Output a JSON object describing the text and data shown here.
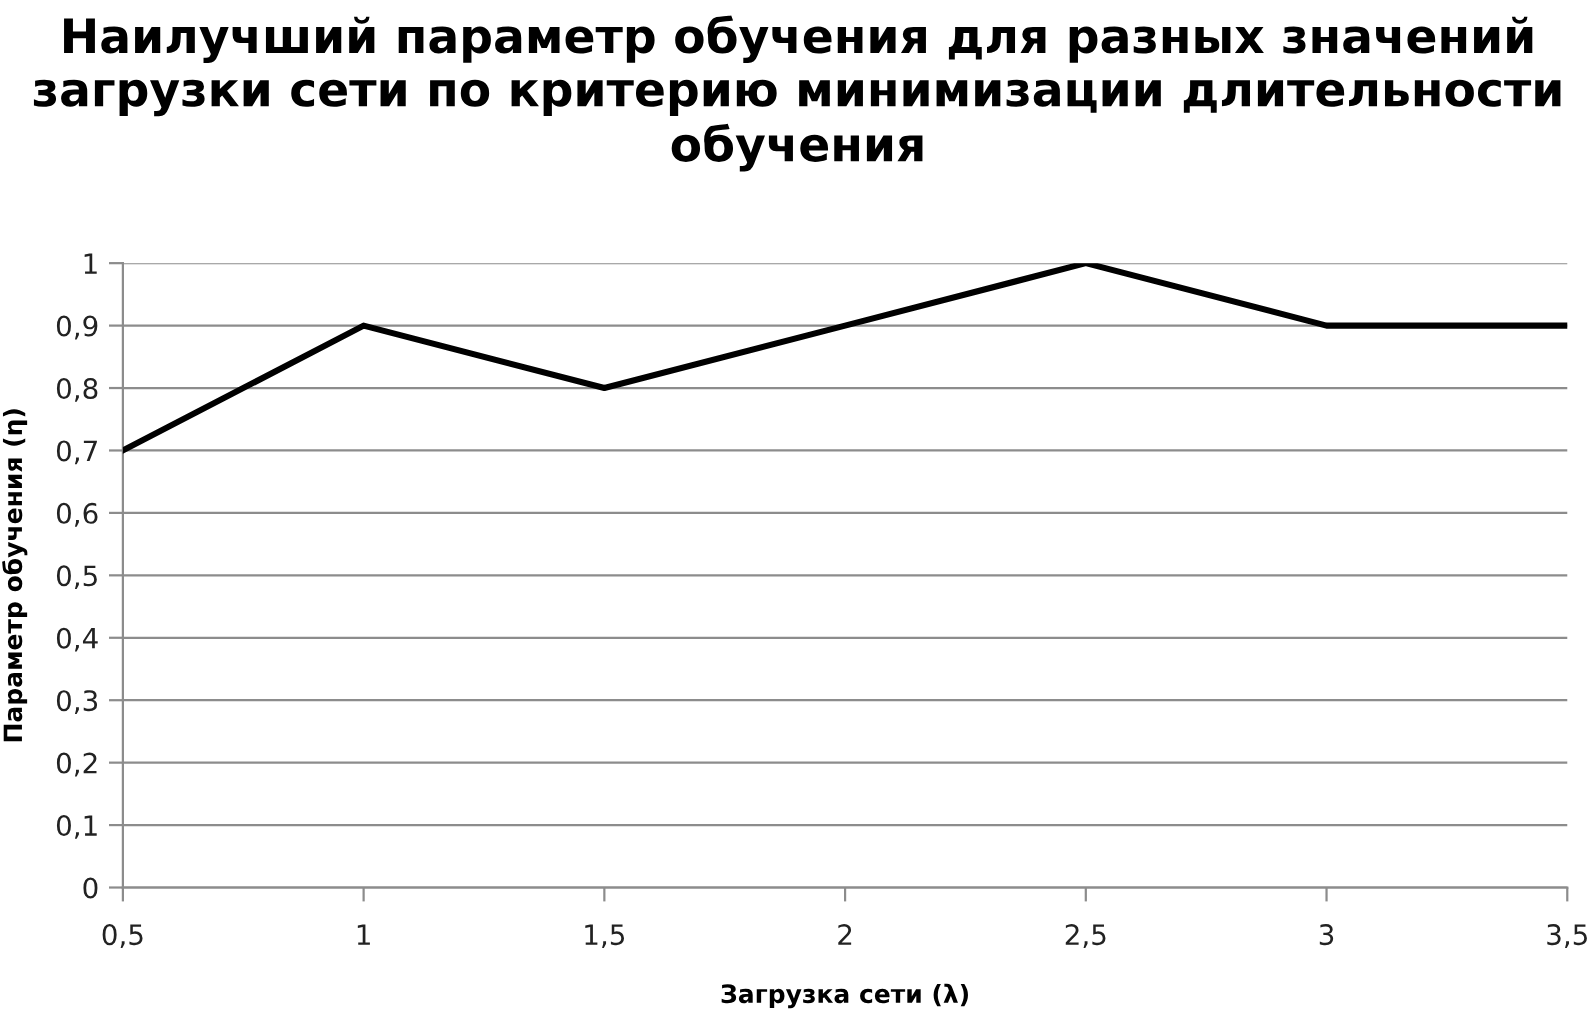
{
  "chart_data": {
    "type": "line",
    "title": "Наилучший параметр обучения для разных значений загрузки сети по критерию минимизации длительности обучения",
    "xlabel": "Загрузка сети (λ)",
    "ylabel": "Параметр обучения (η)",
    "x": [
      0.5,
      1,
      1.5,
      2,
      2.5,
      3,
      3.5
    ],
    "series": [
      {
        "color": "#000000",
        "values": [
          0.7,
          0.9,
          0.8,
          0.9,
          1.0,
          0.9,
          0.9
        ]
      }
    ],
    "xlim": [
      0.5,
      3.5
    ],
    "ylim": [
      0,
      1
    ],
    "xticks": [
      {
        "value": 0.5,
        "label": "0,5"
      },
      1,
      {
        "value": 1.5,
        "label": "1,5"
      },
      2,
      {
        "value": 2.5,
        "label": "2,5"
      },
      3,
      {
        "value": 3.5,
        "label": "3,5"
      }
    ],
    "yticks": [
      0,
      {
        "value": 0.1,
        "label": "0,1"
      },
      {
        "value": 0.2,
        "label": "0,2"
      },
      {
        "value": 0.3,
        "label": "0,3"
      },
      {
        "value": 0.4,
        "label": "0,4"
      },
      {
        "value": 0.5,
        "label": "0,5"
      },
      {
        "value": 0.6,
        "label": "0,6"
      },
      {
        "value": 0.7,
        "label": "0,7"
      },
      {
        "value": 0.8,
        "label": "0,8"
      },
      {
        "value": 0.9,
        "label": "0,9"
      },
      1
    ],
    "grid": "y",
    "marker": "none",
    "line_style": "solid"
  }
}
